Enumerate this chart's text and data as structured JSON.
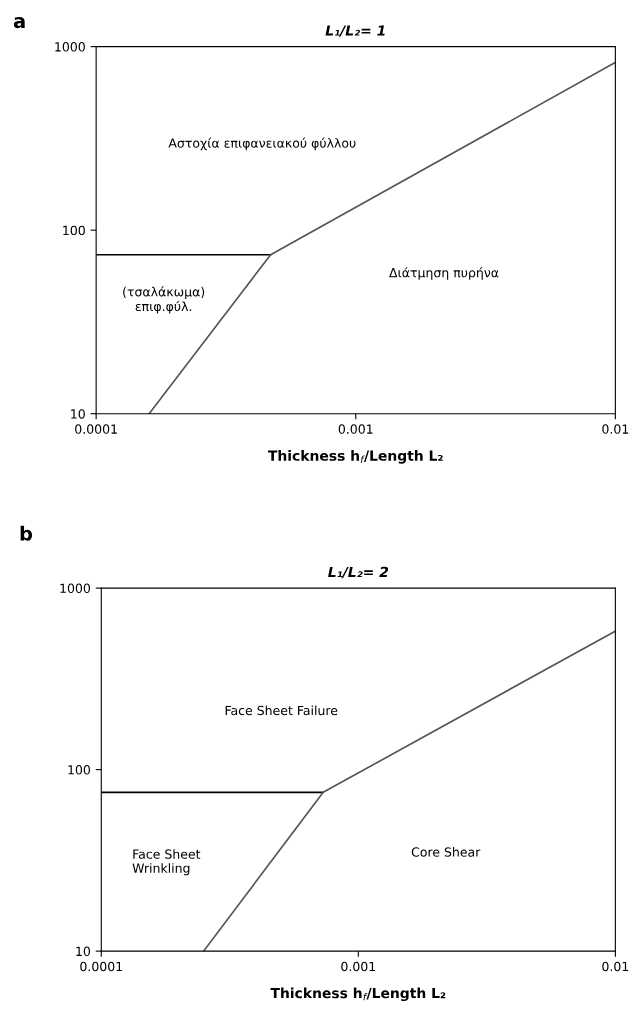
{
  "chart_data": [
    {
      "type": "line",
      "title": "L₁/L₂= 1",
      "xlabel": "Thickness h$_{f}$/Length L₂",
      "log": "xy",
      "xlim": [
        0.0001,
        0.01
      ],
      "xticks": [
        0.0001,
        0.001,
        0.01
      ],
      "ylim": [
        10,
        1000
      ],
      "yticks": [
        10,
        100,
        1000
      ],
      "series": [
        {
          "color": "#000000",
          "x": [
            0.0001,
            0.00047
          ],
          "values": [
            73.5,
            73.5
          ]
        },
        {
          "color": "#555555",
          "x": [
            0.00016,
            0.00047,
            0.01
          ],
          "values": [
            10,
            73.5,
            820
          ]
        }
      ],
      "annotations": [
        "a",
        "Αστοχία επιφανειακού φύλλου",
        "Διάτμηση πυρήνα",
        "(τσαλάκωμα)\nεπιφ.φύλ."
      ]
    },
    {
      "type": "line",
      "title": "L₁/L₂= 2",
      "xlabel": "Thickness h$_{f}$/Length L₂",
      "log": "xy",
      "xlim": [
        0.0001,
        0.01
      ],
      "xticks": [
        0.0001,
        0.001,
        0.01
      ],
      "ylim": [
        10,
        1000
      ],
      "yticks": [
        10,
        100,
        1000
      ],
      "series": [
        {
          "color": "#000000",
          "x": [
            0.0001,
            0.00073
          ],
          "values": [
            75,
            75
          ]
        },
        {
          "color": "#555555",
          "x": [
            0.00025,
            0.00073,
            0.01
          ],
          "values": [
            10,
            75,
            580
          ]
        }
      ],
      "annotations": [
        "b",
        "Face Sheet Failure",
        "Face Sheet\nWrinkling",
        "Core Shear"
      ]
    }
  ]
}
